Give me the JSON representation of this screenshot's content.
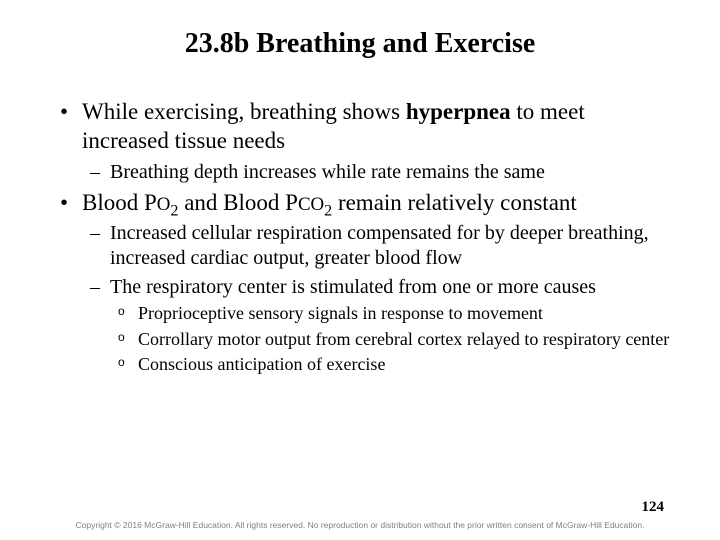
{
  "title": "23.8b Breathing and Exercise",
  "bullets": {
    "b1_pre": "While exercising, breathing shows ",
    "b1_bold": "hyperpnea",
    "b1_post": " to meet increased tissue needs",
    "b1_sub1": "Breathing depth increases while rate remains the same",
    "b2_pre": "Blood P",
    "b2_o": "O",
    "b2_o2": "2",
    "b2_mid": " and Blood P",
    "b2_co": "CO",
    "b2_co2": "2",
    "b2_post": " remain relatively constant",
    "b2_sub1": "Increased cellular respiration compensated for by deeper breathing, increased cardiac output, greater blood flow",
    "b2_sub2": "The respiratory center is stimulated from one or more causes",
    "b2_sub2_a": "Proprioceptive sensory signals in response to movement",
    "b2_sub2_b": "Corrollary motor output from cerebral cortex relayed to respiratory center",
    "b2_sub2_c": "Conscious anticipation of exercise"
  },
  "pagenum": "124",
  "copyright": "Copyright © 2016 McGraw-Hill Education. All rights reserved. No reproduction or distribution without the prior written consent of McGraw-Hill Education.",
  "colors": {
    "text": "#000000",
    "background": "#ffffff",
    "copyright": "#808080"
  },
  "fontsizes": {
    "title": 28,
    "level1": 23,
    "level2": 20,
    "level3": 18,
    "pagenum": 15,
    "copyright": 8.5
  }
}
